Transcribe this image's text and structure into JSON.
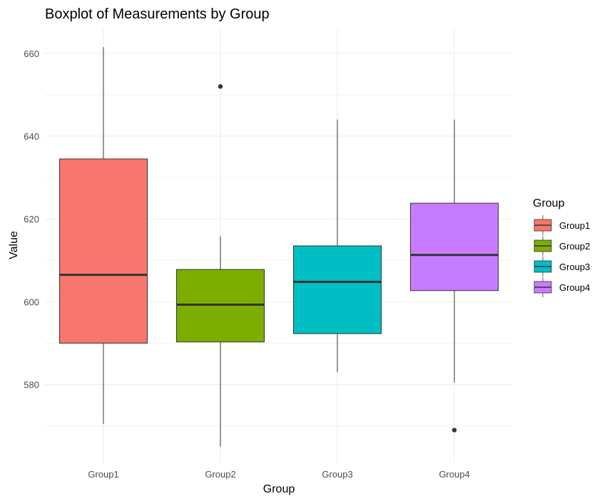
{
  "chart_data": {
    "type": "boxplot",
    "title": "Boxplot of Measurements by Group",
    "xlabel": "Group",
    "ylabel": "Value",
    "categories": [
      "Group1",
      "Group2",
      "Group3",
      "Group4"
    ],
    "ylim": [
      561,
      666
    ],
    "y_ticks": [
      580,
      600,
      620,
      640,
      660
    ],
    "grid": true,
    "legend": {
      "title": "Group",
      "position": "right"
    },
    "series": [
      {
        "name": "Group1",
        "color": "#F8766D",
        "whisker_low": 570.5,
        "q1": 590,
        "median": 606.5,
        "q3": 634.5,
        "whisker_high": 661.5,
        "outliers": []
      },
      {
        "name": "Group2",
        "color": "#7CAE00",
        "whisker_low": 565,
        "q1": 590.3,
        "median": 599.3,
        "q3": 607.8,
        "whisker_high": 615.8,
        "outliers": [
          652
        ]
      },
      {
        "name": "Group3",
        "color": "#00BFC4",
        "whisker_low": 583,
        "q1": 592.3,
        "median": 604.8,
        "q3": 613.5,
        "whisker_high": 644,
        "outliers": []
      },
      {
        "name": "Group4",
        "color": "#C77CFF",
        "whisker_low": 580.5,
        "q1": 602.7,
        "median": 611.3,
        "q3": 623.8,
        "whisker_high": 644,
        "outliers": [
          569
        ]
      }
    ]
  }
}
